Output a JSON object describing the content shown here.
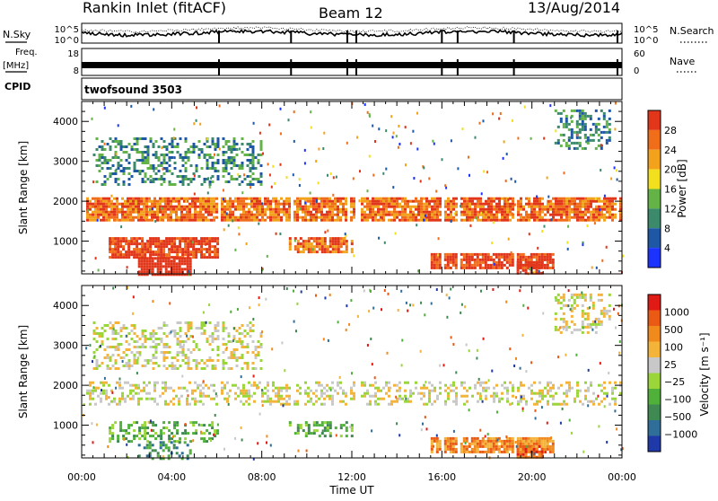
{
  "header": {
    "station": "Rankin Inlet (fitACF)",
    "beam": "Beam 12",
    "date": "13/Aug/2014"
  },
  "top_panels": {
    "nsky_label": "N.Sky",
    "nsearch_label": "N.Search",
    "nsky_top": "10^5",
    "nsky_bottom": "10^0",
    "nsearch_top": "10^5",
    "nsearch_bottom": "10^0",
    "freq_label_1": "Freq.",
    "freq_label_2": "[MHz]",
    "freq_top": "18",
    "freq_bottom": "8",
    "nave_label": "Nave",
    "nave_top": "60",
    "nave_bottom": "0",
    "cpid_label": "CPID",
    "cpid_value": "twofsound 3503"
  },
  "chart_data": [
    {
      "type": "heatmap",
      "name": "power",
      "ylabel": "Slant Range [km]",
      "yticks": [
        "1000",
        "2000",
        "3000",
        "4000"
      ],
      "ylim": [
        180,
        4500
      ],
      "xlim_hours": [
        0,
        24
      ],
      "colorbar_label": "Power [dB]",
      "colorbar_ticks": [
        "4",
        "8",
        "12",
        "16",
        "20",
        "24",
        "28"
      ],
      "colors": [
        "#1c32ff",
        "#1d57a6",
        "#3a8a6b",
        "#63b347",
        "#f2e01f",
        "#f3a21c",
        "#f06d1a",
        "#e1361a"
      ],
      "bands": [
        {
          "t0": 0.2,
          "t1": 24,
          "r0": 1500,
          "r1": 2100,
          "level": 6
        },
        {
          "t0": 1.2,
          "t1": 6,
          "r0": 600,
          "r1": 1100,
          "level": 7
        },
        {
          "t0": 2.5,
          "t1": 4.8,
          "r0": 180,
          "r1": 600,
          "level": 8
        },
        {
          "t0": 9.2,
          "t1": 12,
          "r0": 700,
          "r1": 1100,
          "level": 6
        },
        {
          "t0": 15.5,
          "t1": 21,
          "r0": 300,
          "r1": 700,
          "level": 7
        },
        {
          "t0": 19.2,
          "t1": 20.4,
          "r0": 200,
          "r1": 500,
          "level": 8
        },
        {
          "t0": 0.5,
          "t1": 8,
          "r0": 2400,
          "r1": 3600,
          "level": 2
        },
        {
          "t0": 21,
          "t1": 23.5,
          "r0": 3300,
          "r1": 4300,
          "level": 2
        }
      ]
    },
    {
      "type": "heatmap",
      "name": "velocity",
      "ylabel": "Slant Range [km]",
      "yticks": [
        "1000",
        "2000",
        "3000",
        "4000"
      ],
      "ylim": [
        180,
        4500
      ],
      "xlim_hours": [
        0,
        24
      ],
      "xticks": [
        "00:00",
        "04:00",
        "08:00",
        "12:00",
        "16:00",
        "20:00",
        "00:00"
      ],
      "xlabel": "Time UT",
      "colorbar_label": "Velocity [m s⁻¹]",
      "colorbar_ticks": [
        "1000",
        "500",
        "100",
        "25",
        "−25",
        "−100",
        "−500",
        "−1000"
      ],
      "colors": [
        "#1f3aa8",
        "#2f6e98",
        "#3f8a52",
        "#4fb03a",
        "#9ad63a",
        "#c8c8c8",
        "#f4b43a",
        "#f08a1c",
        "#ea5a14",
        "#e01a14"
      ],
      "bands": [
        {
          "t0": 0.2,
          "t1": 24,
          "r0": 1500,
          "r1": 2100,
          "level": 5
        },
        {
          "t0": 1.2,
          "t1": 6,
          "r0": 600,
          "r1": 1100,
          "level": 3
        },
        {
          "t0": 2.5,
          "t1": 4.8,
          "r0": 180,
          "r1": 600,
          "level": 2
        },
        {
          "t0": 9.2,
          "t1": 12,
          "r0": 700,
          "r1": 1100,
          "level": 3
        },
        {
          "t0": 15.5,
          "t1": 21,
          "r0": 300,
          "r1": 700,
          "level": 7
        },
        {
          "t0": 19.2,
          "t1": 20.4,
          "r0": 200,
          "r1": 500,
          "level": 8
        },
        {
          "t0": 0.5,
          "t1": 8,
          "r0": 2400,
          "r1": 3600,
          "level": 5
        },
        {
          "t0": 21,
          "t1": 23.5,
          "r0": 3300,
          "r1": 4300,
          "level": 5
        }
      ]
    }
  ]
}
